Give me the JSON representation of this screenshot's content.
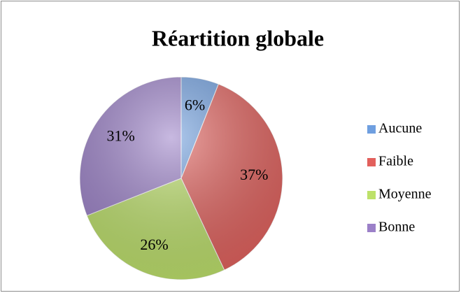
{
  "chart_data": {
    "type": "pie",
    "title": "Réartition globale",
    "categories": [
      "Aucune",
      "Faible",
      "Moyenne",
      "Bonne"
    ],
    "values": [
      6,
      37,
      26,
      31
    ],
    "value_labels": [
      "6%",
      "37%",
      "26%",
      "31%"
    ],
    "colors": [
      "#6f9fe0",
      "#e2605c",
      "#bde16a",
      "#9b80c8"
    ],
    "legend": "right"
  }
}
